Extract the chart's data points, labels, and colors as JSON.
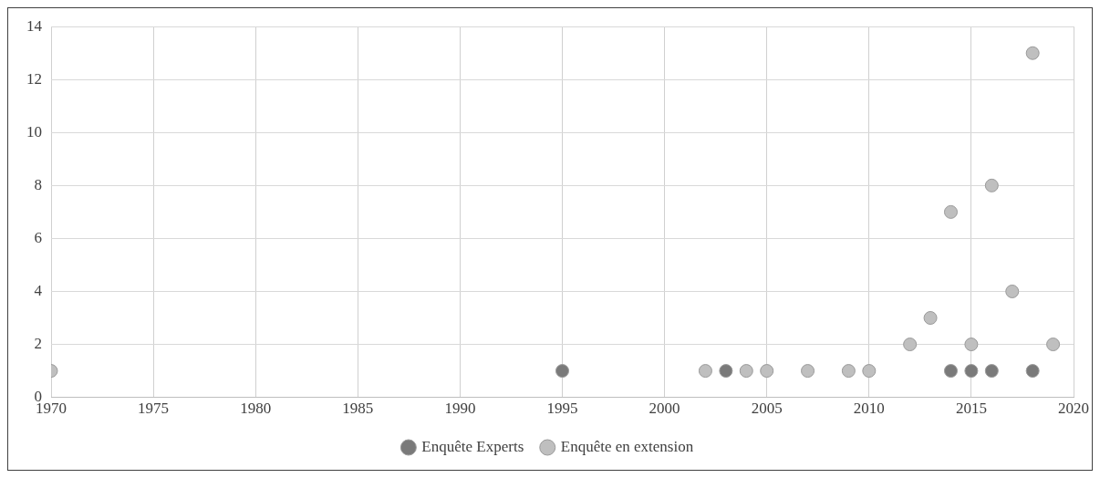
{
  "chart_data": {
    "type": "scatter",
    "xlim": [
      1970,
      2020
    ],
    "xticks": [
      1970,
      1975,
      1980,
      1985,
      1990,
      1995,
      2000,
      2005,
      2010,
      2015,
      2020
    ],
    "ylim": [
      0,
      14
    ],
    "yticks": [
      0,
      2,
      4,
      6,
      8,
      10,
      12,
      14
    ],
    "grid": true,
    "legend": "bottom",
    "marker": "circle",
    "series": [
      {
        "name": "Enquête Experts",
        "color": "#7a7a7a",
        "x": [
          1995,
          2003,
          2014,
          2015,
          2016,
          2018
        ],
        "values": [
          1,
          1,
          1,
          1,
          1,
          1
        ]
      },
      {
        "name": "Enquête en extension",
        "color": "#bfbfbf",
        "x": [
          1970,
          2002,
          2004,
          2005,
          2007,
          2009,
          2010,
          2012,
          2013,
          2014,
          2015,
          2016,
          2017,
          2018,
          2019
        ],
        "values": [
          1,
          1,
          1,
          1,
          1,
          1,
          1,
          2,
          3,
          7,
          2,
          8,
          4,
          13,
          2
        ]
      }
    ]
  }
}
